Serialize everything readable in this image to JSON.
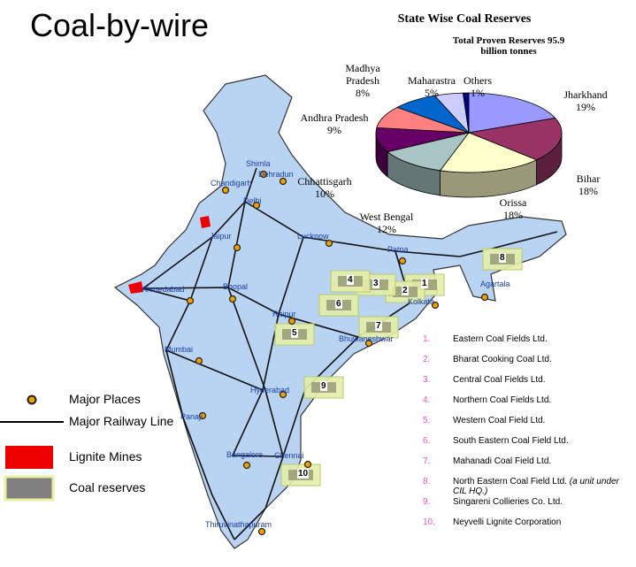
{
  "title": "Coal-by-wire",
  "chart_data": {
    "type": "pie",
    "title": "State Wise Coal Reserves",
    "subtitle": "Total Proven Reserves 95.9 billion tonnes",
    "categories": [
      "Jharkhand",
      "Bihar",
      "Orissa",
      "West Bengal",
      "Chhattisgarh",
      "Andhra Pradesh",
      "Madhya Pradesh",
      "Maharastra",
      "Others"
    ],
    "values": [
      19,
      18,
      18,
      12,
      10,
      9,
      8,
      5,
      1
    ],
    "value_labels": [
      "19%",
      "18%",
      "18%",
      "12%",
      "10%",
      "9%",
      "8%",
      "5%",
      "1%"
    ],
    "colors": [
      "#9999ff",
      "#993366",
      "#ffffcc",
      "#a9c4c4",
      "#660066",
      "#ff8080",
      "#0066cc",
      "#ccccff",
      "#000080"
    ]
  },
  "map": {
    "places": [
      "Shimla",
      "Dehradun",
      "Chandigarh",
      "Delhi",
      "Jaipur",
      "Lucknow",
      "Patna",
      "Agartala",
      "Ahmedabad",
      "Bhopal",
      "Kolkata",
      "Raipur",
      "Bhuwaneshwar",
      "Mumbai",
      "Hyderabad",
      "Panaji",
      "Bangalore",
      "Chennai",
      "Thiruvinathapuram"
    ],
    "coalfields": [
      "1",
      "2",
      "3",
      "4",
      "5",
      "6",
      "7",
      "8",
      "9",
      "10"
    ]
  },
  "legend": [
    "Major Places",
    "Major Railway Line",
    "Lignite Mines",
    "Coal reserves"
  ],
  "companies": [
    {
      "number": "1.",
      "name": "Eastern Coal Fields Ltd."
    },
    {
      "number": "2.",
      "name": "Bharat Cooking Coal Ltd."
    },
    {
      "number": "3.",
      "name": "Central Coal Fields Ltd."
    },
    {
      "number": "4.",
      "name": "Northern Coal Fields Ltd."
    },
    {
      "number": "5.",
      "name": "Western Coal Field Ltd."
    },
    {
      "number": "6.",
      "name": "South Eastern Coal Field Ltd."
    },
    {
      "number": "7.",
      "name": "Mahanadi Coal Field Ltd."
    },
    {
      "number": "8.",
      "name": "North Eastern Coal Field Ltd.",
      "note": "(a unit under CIL HQ.)"
    },
    {
      "number": "9.",
      "name": "Singareni Collieries Co. Ltd."
    },
    {
      "number": "10.",
      "name": "Neyvelli Lignite Corporation"
    }
  ]
}
